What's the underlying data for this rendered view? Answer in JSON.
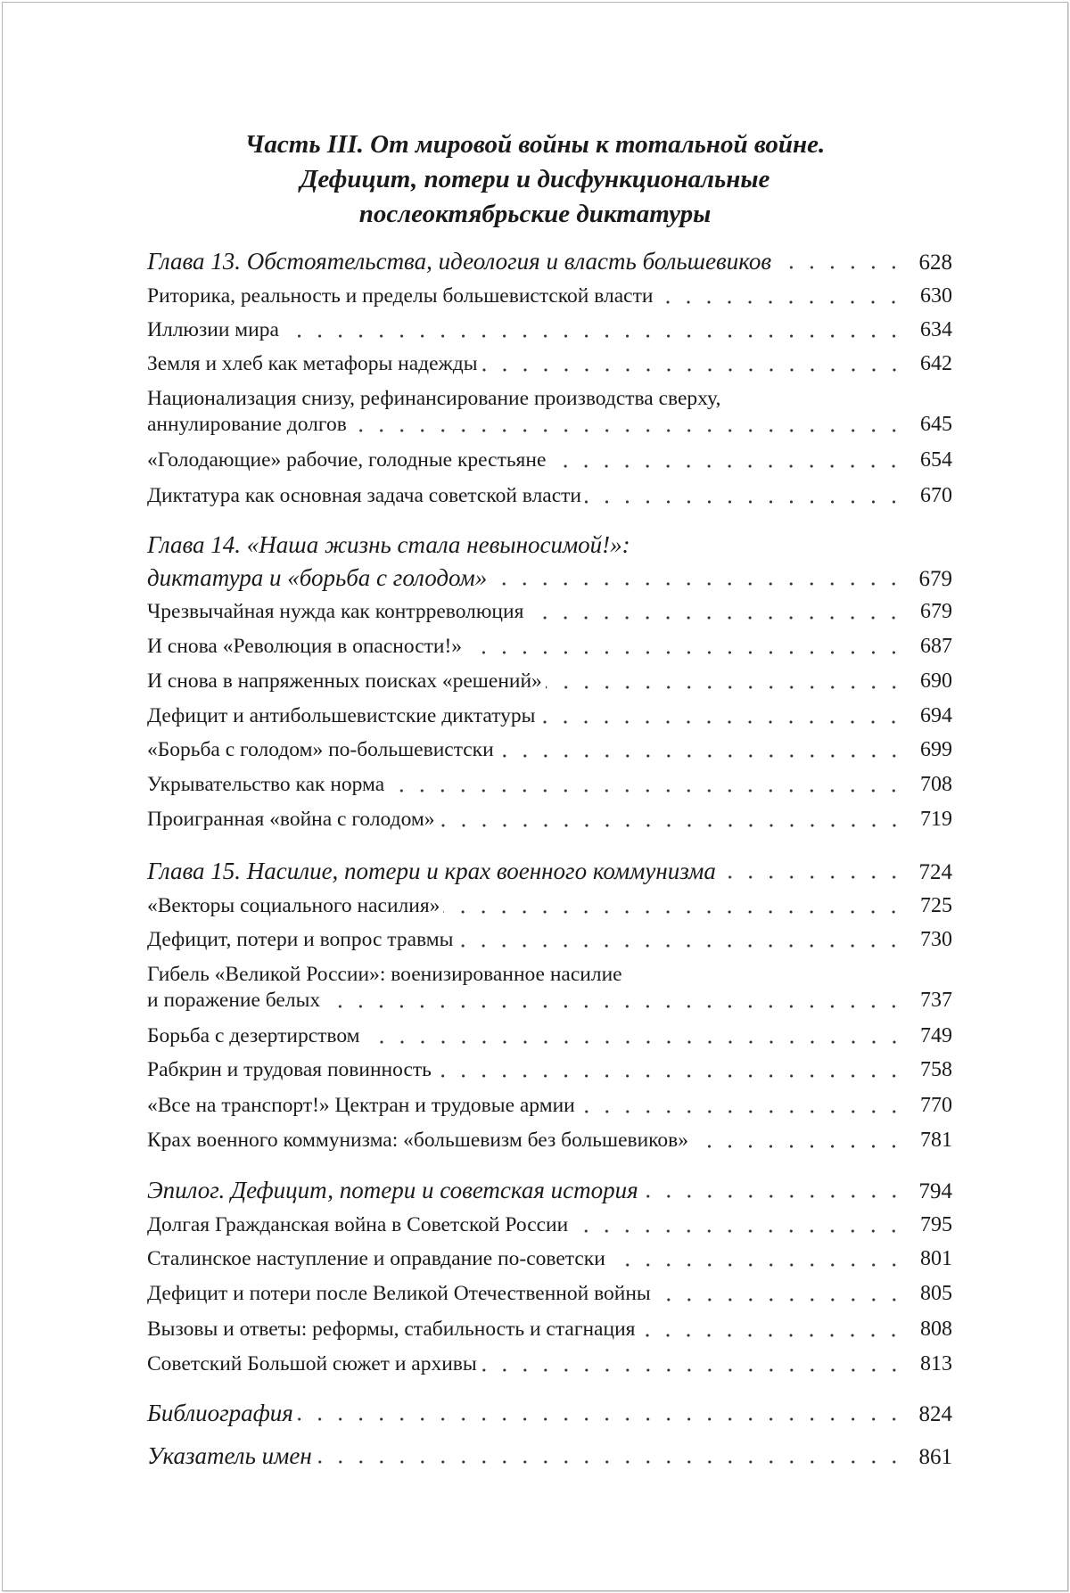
{
  "part_title": [
    "Часть III. От мировой войны к тотальной войне.",
    "Дефицит, потери и дисфункциональные",
    "послеоктябрьские диктатуры"
  ],
  "toc": [
    {
      "kind": "chapter",
      "lines": [
        "Глава 13. Обстоятельства, идеология и власть большевиков"
      ],
      "page": "628"
    },
    {
      "kind": "section",
      "lines": [
        "Риторика, реальность и пределы большевистской власти"
      ],
      "page": "630"
    },
    {
      "kind": "section",
      "lines": [
        "Иллюзии мира"
      ],
      "page": "634"
    },
    {
      "kind": "section",
      "lines": [
        "Земля и хлеб как метафоры надежды"
      ],
      "page": "642"
    },
    {
      "kind": "section",
      "lines": [
        "Национализация снизу, рефинансирование производства сверху,",
        "аннулирование долгов"
      ],
      "page": "645"
    },
    {
      "kind": "section",
      "lines": [
        "«Голодающие» рабочие, голодные крестьяне"
      ],
      "page": "654"
    },
    {
      "kind": "section",
      "lines": [
        "Диктатура как основная задача советской власти"
      ],
      "page": "670"
    },
    {
      "kind": "chapter",
      "lines": [
        "Глава 14. «Наша жизнь стала невыносимой!»:",
        "диктатура и «борьба с голодом»"
      ],
      "page": "679"
    },
    {
      "kind": "section",
      "lines": [
        "Чрезвычайная нужда как контрреволюция"
      ],
      "page": "679"
    },
    {
      "kind": "section",
      "lines": [
        "И снова «Революция в опасности!»"
      ],
      "page": "687"
    },
    {
      "kind": "section",
      "lines": [
        "И снова в напряженных поисках «решений»"
      ],
      "page": "690"
    },
    {
      "kind": "section",
      "lines": [
        "Дефицит и антибольшевистские диктатуры"
      ],
      "page": "694"
    },
    {
      "kind": "section",
      "lines": [
        "«Борьба с голодом» по-большевистски"
      ],
      "page": "699"
    },
    {
      "kind": "section",
      "lines": [
        "Укрывательство как норма"
      ],
      "page": "708"
    },
    {
      "kind": "section",
      "lines": [
        "Проигранная «война с голодом»"
      ],
      "page": "719"
    },
    {
      "kind": "chapter",
      "lines": [
        "Глава 15. Насилие, потери и крах военного коммунизма"
      ],
      "page": "724"
    },
    {
      "kind": "section",
      "lines": [
        "«Векторы социального насилия»"
      ],
      "page": "725"
    },
    {
      "kind": "section",
      "lines": [
        "Дефицит, потери и вопрос травмы"
      ],
      "page": "730"
    },
    {
      "kind": "section",
      "lines": [
        "Гибель «Великой России»: военизированное насилие",
        "и поражение белых"
      ],
      "page": "737"
    },
    {
      "kind": "section",
      "lines": [
        "Борьба с дезертирством"
      ],
      "page": "749"
    },
    {
      "kind": "section",
      "lines": [
        "Рабкрин и трудовая повинность"
      ],
      "page": "758"
    },
    {
      "kind": "section",
      "lines": [
        "«Все на транспорт!» Цектран и трудовые армии"
      ],
      "page": "770"
    },
    {
      "kind": "section",
      "lines": [
        "Крах военного коммунизма: «большевизм без большевиков»"
      ],
      "page": "781"
    },
    {
      "kind": "chapter",
      "lines": [
        "Эпилог. Дефицит, потери и советская история"
      ],
      "page": "794"
    },
    {
      "kind": "section",
      "lines": [
        "Долгая Гражданская война в Советской России"
      ],
      "page": "795"
    },
    {
      "kind": "section",
      "lines": [
        "Сталинское наступление и оправдание по-советски"
      ],
      "page": "801"
    },
    {
      "kind": "section",
      "lines": [
        "Дефицит и потери после Великой Отечественной войны"
      ],
      "page": "805"
    },
    {
      "kind": "section",
      "lines": [
        "Вызовы и ответы: реформы, стабильность и стагнация"
      ],
      "page": "808"
    },
    {
      "kind": "section",
      "lines": [
        "Советский Большой сюжет и архивы"
      ],
      "page": "813"
    },
    {
      "kind": "chapter",
      "lines": [
        "Библиография"
      ],
      "page": "824"
    },
    {
      "kind": "chapter",
      "lines": [
        "Указатель имен"
      ],
      "page": "861"
    }
  ]
}
